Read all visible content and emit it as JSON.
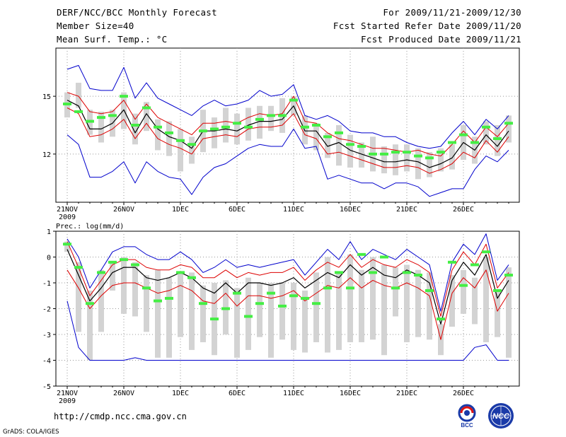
{
  "header": {
    "title": "DERF/NCC/BCC Monthly Forecast",
    "member_size": "Member Size=40",
    "variable": "Mean Surf. Temp.: °C",
    "period": "For 2009/11/21-2009/12/30",
    "fcst_started": "Fcst Started Refer Date 2009/11/20",
    "fcst_produced": "Fcst Produced Date 2009/11/21"
  },
  "footer": {
    "url": "http://cmdp.ncc.cma.gov.cn",
    "grads": "GrADS: COLA/IGES",
    "logo_bcc": "BCC",
    "logo_ncc": "NCC"
  },
  "colors": {
    "box": "#d3d3d3",
    "median": "#000000",
    "spread": "#dd0000",
    "extreme": "#0000cc",
    "member": "#44ee44",
    "grid": "#999999"
  },
  "chart_data": [
    {
      "type": "box",
      "title": "Mean Surf. Temp.: °C",
      "x_labels": [
        "21NOV",
        "26NOV",
        "1DEC",
        "6DEC",
        "11DEC",
        "16DEC",
        "21DEC",
        "26DEC"
      ],
      "x_sublabel": "2009",
      "y_ticks": [
        "15",
        "12"
      ],
      "ylim": [
        9.5,
        17.5
      ],
      "days": 40,
      "series": {
        "max": [
          16.4,
          16.6,
          15.4,
          15.3,
          15.3,
          16.5,
          14.9,
          15.7,
          14.9,
          14.6,
          14.3,
          14.0,
          14.5,
          14.8,
          14.5,
          14.6,
          14.8,
          15.3,
          15.0,
          15.1,
          15.6,
          14.0,
          13.8,
          14.0,
          13.7,
          13.2,
          13.1,
          13.1,
          12.9,
          12.9,
          12.6,
          12.4,
          12.3,
          12.4,
          13.1,
          13.7,
          13.0,
          13.8,
          13.3,
          14.0
        ],
        "p84": [
          15.2,
          15.0,
          14.2,
          14.1,
          14.2,
          14.8,
          13.8,
          14.6,
          13.9,
          13.6,
          13.3,
          13.0,
          13.6,
          13.6,
          13.7,
          13.6,
          13.9,
          14.1,
          14.0,
          14.1,
          15.0,
          13.7,
          13.6,
          13.1,
          12.8,
          12.7,
          12.5,
          12.3,
          12.3,
          12.2,
          12.1,
          12.2,
          12.0,
          11.9,
          12.5,
          13.2,
          12.6,
          13.4,
          12.9,
          13.6
        ],
        "mean": [
          14.8,
          14.5,
          13.3,
          13.3,
          13.6,
          14.3,
          13.1,
          14.1,
          13.3,
          12.9,
          12.7,
          12.3,
          13.2,
          13.2,
          13.3,
          13.2,
          13.5,
          13.7,
          13.7,
          13.8,
          14.5,
          13.2,
          13.2,
          12.4,
          12.6,
          12.2,
          12.0,
          11.8,
          11.6,
          11.6,
          11.7,
          11.6,
          11.3,
          11.5,
          11.8,
          12.6,
          12.2,
          13.0,
          12.4,
          13.2
        ],
        "p16": [
          14.4,
          14.1,
          12.9,
          13.0,
          13.3,
          13.8,
          12.8,
          13.6,
          12.8,
          12.5,
          12.3,
          12.0,
          12.8,
          12.9,
          13.0,
          12.9,
          13.3,
          13.4,
          13.4,
          13.5,
          14.1,
          13.0,
          12.8,
          12.0,
          12.1,
          11.9,
          11.7,
          11.5,
          11.3,
          11.3,
          11.4,
          11.3,
          11.0,
          11.2,
          11.5,
          12.1,
          11.8,
          12.7,
          12.1,
          12.9
        ],
        "min": [
          13.0,
          12.5,
          10.8,
          10.8,
          11.1,
          11.6,
          10.5,
          11.6,
          11.1,
          10.8,
          10.7,
          9.9,
          10.8,
          11.3,
          11.5,
          11.9,
          12.3,
          12.5,
          12.4,
          12.4,
          13.3,
          12.3,
          12.4,
          10.7,
          10.9,
          10.7,
          10.5,
          10.5,
          10.2,
          10.5,
          10.5,
          10.3,
          9.8,
          10.0,
          10.2,
          10.2,
          11.2,
          11.9,
          11.6,
          12.2
        ],
        "box_top": [
          15.2,
          15.7,
          14.3,
          14.2,
          14.3,
          15.2,
          14.1,
          14.7,
          13.8,
          13.7,
          13.3,
          12.9,
          14.3,
          13.9,
          14.4,
          14.1,
          14.4,
          14.5,
          14.5,
          14.9,
          15.0,
          14.0,
          13.6,
          13.1,
          13.5,
          13.0,
          12.6,
          12.9,
          12.4,
          12.5,
          12.5,
          12.3,
          12.1,
          12.3,
          12.5,
          13.5,
          12.9,
          13.7,
          13.5,
          14.0
        ],
        "box_bot": [
          13.9,
          14.4,
          13.0,
          12.6,
          12.9,
          13.3,
          12.5,
          13.2,
          12.2,
          11.9,
          11.1,
          11.5,
          12.1,
          12.3,
          12.6,
          12.5,
          12.7,
          12.8,
          13.2,
          13.1,
          14.0,
          12.5,
          12.2,
          11.8,
          11.4,
          11.3,
          11.3,
          11.1,
          11.0,
          10.9,
          11.1,
          10.7,
          10.8,
          11.1,
          11.2,
          11.7,
          11.5,
          12.5,
          11.9,
          12.6
        ],
        "member": [
          14.6,
          14.2,
          13.7,
          13.9,
          14.0,
          15.0,
          13.5,
          14.4,
          13.4,
          13.1,
          12.7,
          12.5,
          13.2,
          13.3,
          13.4,
          13.6,
          13.4,
          13.8,
          14.0,
          14.0,
          14.8,
          13.4,
          13.5,
          12.9,
          13.1,
          12.5,
          12.4,
          12.0,
          12.0,
          12.1,
          12.1,
          11.9,
          11.8,
          12.1,
          12.6,
          13.0,
          12.6,
          13.4,
          12.8,
          13.6
        ]
      }
    },
    {
      "type": "box",
      "title": "Prec.: log(mm/d)",
      "x_labels": [
        "21NOV",
        "26NOV",
        "1DEC",
        "6DEC",
        "11DEC",
        "16DEC",
        "21DEC",
        "26DEC"
      ],
      "x_sublabel": "2009",
      "y_ticks": [
        "1",
        "0",
        "-1",
        "-2",
        "-3",
        "-4",
        "-5"
      ],
      "ylim": [
        -5,
        1
      ],
      "days": 40,
      "series": {
        "max": [
          0.7,
          0.0,
          -1.2,
          -0.5,
          0.2,
          0.4,
          0.4,
          0.1,
          -0.1,
          -0.1,
          0.2,
          -0.1,
          -0.6,
          -0.4,
          -0.1,
          -0.4,
          -0.3,
          -0.4,
          -0.3,
          -0.2,
          -0.1,
          -0.7,
          -0.2,
          0.3,
          -0.1,
          0.6,
          -0.1,
          0.3,
          0.1,
          -0.1,
          0.3,
          0.0,
          -0.3,
          -2.1,
          -0.2,
          0.5,
          0.1,
          0.9,
          -0.9,
          -0.3
        ],
        "p84": [
          0.6,
          -0.4,
          -1.5,
          -0.9,
          -0.3,
          -0.1,
          -0.1,
          -0.4,
          -0.5,
          -0.5,
          -0.3,
          -0.4,
          -0.8,
          -0.8,
          -0.5,
          -0.8,
          -0.6,
          -0.7,
          -0.6,
          -0.6,
          -0.4,
          -0.9,
          -0.5,
          -0.2,
          -0.4,
          0.1,
          -0.4,
          -0.1,
          -0.3,
          -0.4,
          -0.1,
          -0.3,
          -0.6,
          -2.3,
          -0.5,
          0.2,
          -0.3,
          0.5,
          -1.2,
          -0.6
        ],
        "mean": [
          0.3,
          -0.7,
          -1.7,
          -1.2,
          -0.6,
          -0.4,
          -0.4,
          -0.8,
          -0.9,
          -0.8,
          -0.6,
          -0.8,
          -1.2,
          -1.4,
          -1.0,
          -1.4,
          -1.0,
          -1.0,
          -1.1,
          -1.0,
          -0.8,
          -1.2,
          -0.9,
          -0.6,
          -0.8,
          -0.3,
          -0.7,
          -0.4,
          -0.7,
          -0.8,
          -0.5,
          -0.7,
          -1.0,
          -2.6,
          -0.9,
          -0.2,
          -0.7,
          0.1,
          -1.6,
          -0.9
        ],
        "p16": [
          -0.5,
          -1.2,
          -2.0,
          -1.5,
          -1.1,
          -1.0,
          -1.0,
          -1.2,
          -1.4,
          -1.3,
          -1.1,
          -1.3,
          -1.7,
          -1.8,
          -1.4,
          -1.9,
          -1.5,
          -1.5,
          -1.6,
          -1.5,
          -1.3,
          -1.7,
          -1.4,
          -1.1,
          -1.2,
          -0.8,
          -1.2,
          -0.9,
          -1.1,
          -1.2,
          -1.0,
          -1.2,
          -1.5,
          -3.2,
          -1.4,
          -0.8,
          -1.2,
          -0.5,
          -2.1,
          -1.4
        ],
        "min": [
          -1.7,
          -3.5,
          -4.0,
          -4.0,
          -4.0,
          -4.0,
          -3.9,
          -4.0,
          -4.0,
          -4.0,
          -4.0,
          -4.0,
          -4.0,
          -4.0,
          -4.0,
          -4.0,
          -4.0,
          -4.0,
          -4.0,
          -4.0,
          -4.0,
          -4.0,
          -4.0,
          -4.0,
          -4.0,
          -4.0,
          -4.0,
          -4.0,
          -4.0,
          -4.0,
          -4.0,
          -4.0,
          -4.0,
          -4.0,
          -4.0,
          -4.0,
          -3.5,
          -3.4,
          -4.0,
          -4.0
        ],
        "box_top": [
          0.6,
          -0.2,
          -1.3,
          -0.5,
          -0.2,
          0.0,
          -0.2,
          -0.7,
          -0.5,
          -0.8,
          -0.6,
          -0.6,
          -1.1,
          -1.0,
          -0.9,
          -1.2,
          -0.8,
          -1.0,
          -1.0,
          -1.0,
          -1.0,
          -1.3,
          -0.6,
          0.0,
          -0.6,
          0.1,
          -0.5,
          0.0,
          -0.3,
          -0.4,
          -0.3,
          -0.5,
          -0.6,
          -2.6,
          -0.7,
          -0.5,
          -0.8,
          0.0,
          -1.3,
          -0.4
        ],
        "box_bot": [
          0.2,
          -2.9,
          -4.0,
          -2.9,
          -1.3,
          -2.2,
          -2.3,
          -2.9,
          -3.9,
          -3.9,
          -3.1,
          -3.6,
          -3.3,
          -3.8,
          -3.0,
          -3.9,
          -3.6,
          -3.1,
          -3.9,
          -3.2,
          -3.6,
          -3.7,
          -3.3,
          -3.7,
          -3.6,
          -3.3,
          -3.3,
          -3.2,
          -3.8,
          -2.3,
          -3.3,
          -3.1,
          -3.2,
          -3.8,
          -2.7,
          -2.2,
          -2.6,
          -3.3,
          -3.1,
          -3.9
        ],
        "member": [
          0.5,
          -0.4,
          -1.8,
          -0.6,
          -0.2,
          -0.1,
          -0.3,
          -1.2,
          -1.7,
          -1.6,
          -0.6,
          -0.8,
          -1.8,
          -2.4,
          -2.0,
          -1.4,
          -2.3,
          -1.8,
          -1.4,
          -1.9,
          -1.5,
          -1.6,
          -1.8,
          -1.2,
          -0.6,
          -1.2,
          0.1,
          -0.6,
          0.0,
          -1.2,
          -0.6,
          -0.7,
          -1.3,
          -2.4,
          -0.2,
          -1.1,
          -0.3,
          0.2,
          -1.3,
          -0.7
        ]
      }
    }
  ]
}
